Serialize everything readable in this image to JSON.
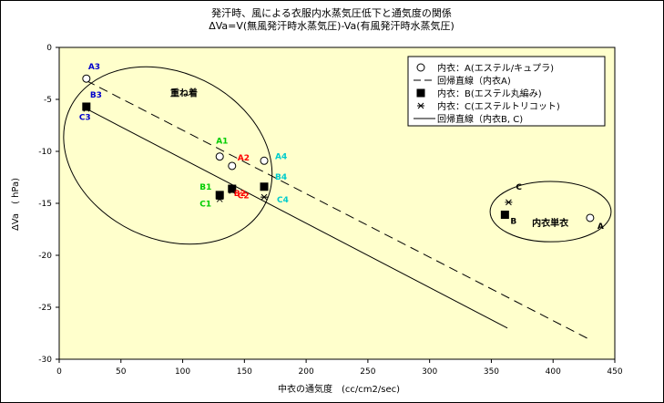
{
  "chart_data": {
    "type": "scatter",
    "title": "発汗時、風による衣服内水蒸気圧低下と通気度の関係",
    "subtitle": "ΔVa=V(無風発汗時水蒸気圧)-Va(有風発汗時水蒸気圧)",
    "xlabel": "中衣の通気度　(cc/cm2/sec)",
    "ylabel": "ΔVa　( hPa)",
    "xlim": [
      0,
      450
    ],
    "ylim": [
      -30,
      0
    ],
    "xticks": [
      "0",
      "50",
      "100",
      "150",
      "200",
      "250",
      "300",
      "350",
      "400",
      "450"
    ],
    "yticks": [
      "0",
      "-5",
      "-10",
      "-15",
      "-20",
      "-25",
      "-30"
    ],
    "grid": false,
    "legend_position": "top-right",
    "series": [
      {
        "name": "内衣：A(エステル/キュプラ)",
        "marker": "open-circle",
        "points": [
          {
            "x": 22,
            "y": -3.0,
            "label": "A3",
            "label_color": "#0000cc"
          },
          {
            "x": 130,
            "y": -10.5,
            "label": "A1",
            "label_color": "#00cc00"
          },
          {
            "x": 140,
            "y": -11.4,
            "label": "A2",
            "label_color": "#ff0000"
          },
          {
            "x": 166,
            "y": -10.9,
            "label": "A4",
            "label_color": "#00cccc"
          },
          {
            "x": 430,
            "y": -16.4,
            "label": "A",
            "label_color": "#000000"
          }
        ]
      },
      {
        "name": "内衣：B(エステル丸編み)",
        "marker": "filled-square",
        "points": [
          {
            "x": 22,
            "y": -5.7,
            "label": "B3",
            "label_color": "#0000cc"
          },
          {
            "x": 130,
            "y": -14.2,
            "label": "B1",
            "label_color": "#00cc00"
          },
          {
            "x": 140,
            "y": -13.6,
            "label": "B2",
            "label_color": "#ff0000"
          },
          {
            "x": 166,
            "y": -13.4,
            "label": "B4",
            "label_color": "#00cccc"
          },
          {
            "x": 361,
            "y": -16.1,
            "label": "B",
            "label_color": "#000000"
          }
        ]
      },
      {
        "name": "内衣：C(エステルトリコット)",
        "marker": "asterisk",
        "points": [
          {
            "x": 22,
            "y": -5.9,
            "label": "C3",
            "label_color": "#0000cc"
          },
          {
            "x": 130,
            "y": -14.6,
            "label": "C1",
            "label_color": "#00cc00"
          },
          {
            "x": 140,
            "y": -13.8,
            "label": "C2",
            "label_color": "#ff0000"
          },
          {
            "x": 166,
            "y": -14.4,
            "label": "C4",
            "label_color": "#00cccc"
          },
          {
            "x": 364,
            "y": -14.9,
            "label": "C",
            "label_color": "#000000"
          }
        ]
      }
    ],
    "regression_lines": [
      {
        "name": "回帰直線（内衣A)",
        "style": "dashed",
        "x1": 22,
        "y1": -3.2,
        "x2": 428,
        "y2": -28.0
      },
      {
        "name": "回帰直線（内衣B, C)",
        "style": "solid",
        "x1": 22,
        "y1": -5.9,
        "x2": 363,
        "y2": -27.0
      }
    ],
    "annotations": [
      {
        "text": "重ね着",
        "x": 90,
        "y": -4.7
      },
      {
        "text": "内衣単衣",
        "x": 383,
        "y": -17.2
      }
    ],
    "ellipses": [
      {
        "cx": 88,
        "cy": -10.4,
        "rx": 88,
        "ry": 8.0,
        "angle_deg": 26
      },
      {
        "cx": 398,
        "cy": -15.8,
        "rx": 49,
        "ry": 2.9,
        "angle_deg": 0
      }
    ]
  }
}
